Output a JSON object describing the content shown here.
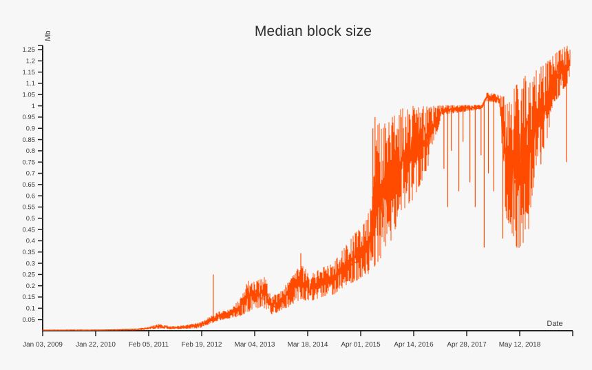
{
  "page": {
    "background_color": "#f7f7f7"
  },
  "chart": {
    "title": "Median block size",
    "y_axis_title": "Mb",
    "x_axis_title": "Date"
  },
  "chart_data": {
    "type": "line",
    "title": "Median block size",
    "xlabel": "Date",
    "ylabel": "Mb",
    "legend": "none",
    "grid": false,
    "line_color": "#ff4b00",
    "axis_color": "#222222",
    "tick_text_color": "#3a3a3a",
    "background_color": "#f7f7f7",
    "ylim": [
      0,
      1.3
    ],
    "y_tick_values": [
      0.05,
      0.1,
      0.15,
      0.2,
      0.25,
      0.3,
      0.35,
      0.4,
      0.45,
      0.5,
      0.55,
      0.6,
      0.65,
      0.7,
      0.75,
      0.8,
      0.85,
      0.9,
      0.95,
      1,
      1.05,
      1.1,
      1.15,
      1.2,
      1.25
    ],
    "y_tick_labels": [
      "0.05",
      "0.1",
      "0.15",
      "0.2",
      "0.25",
      "0.3",
      "0.35",
      "0.4",
      "0.45",
      "0.5",
      "0.55",
      "0.6",
      "0.65",
      "0.7",
      "0.75",
      "0.8",
      "0.85",
      "0.9",
      "0.95",
      "1",
      "1.05",
      "1.1",
      "1.15",
      "1.2",
      "1.25"
    ],
    "x_tick_labels": [
      "Jan 03, 2009",
      "Jan 22, 2010",
      "Feb 05, 2011",
      "Feb 19, 2012",
      "Mar 04, 2013",
      "Mar 18, 2014",
      "Apr 01, 2015",
      "Apr 14, 2016",
      "Apr 28, 2017",
      "May 12, 2018"
    ],
    "x_axis_has_terminal_unlabeled_tick": true,
    "series": [
      {
        "name": "median block size (Mb)",
        "format": "envelope rows are [x_fraction_of_axis, min_Mb, max_Mb]; daily series is highly volatile so it renders as a band between min and max",
        "envelope": [
          [
            0.0,
            0.001,
            0.004
          ],
          [
            0.114,
            0.001,
            0.005
          ],
          [
            0.179,
            0.002,
            0.01
          ],
          [
            0.2,
            0.005,
            0.018
          ],
          [
            0.221,
            0.01,
            0.03
          ],
          [
            0.242,
            0.006,
            0.02
          ],
          [
            0.27,
            0.008,
            0.025
          ],
          [
            0.3,
            0.012,
            0.04
          ],
          [
            0.316,
            0.03,
            0.065
          ],
          [
            0.332,
            0.045,
            0.085
          ],
          [
            0.355,
            0.055,
            0.095
          ],
          [
            0.374,
            0.065,
            0.15
          ],
          [
            0.39,
            0.085,
            0.24
          ],
          [
            0.403,
            0.1,
            0.22
          ],
          [
            0.419,
            0.1,
            0.24
          ],
          [
            0.432,
            0.07,
            0.15
          ],
          [
            0.449,
            0.09,
            0.18
          ],
          [
            0.468,
            0.11,
            0.23
          ],
          [
            0.487,
            0.14,
            0.3
          ],
          [
            0.504,
            0.13,
            0.25
          ],
          [
            0.527,
            0.15,
            0.28
          ],
          [
            0.549,
            0.16,
            0.3
          ],
          [
            0.571,
            0.2,
            0.38
          ],
          [
            0.591,
            0.22,
            0.44
          ],
          [
            0.603,
            0.24,
            0.46
          ],
          [
            0.621,
            0.26,
            0.56
          ],
          [
            0.631,
            0.3,
            0.93
          ],
          [
            0.649,
            0.35,
            0.92
          ],
          [
            0.67,
            0.48,
            0.98
          ],
          [
            0.688,
            0.55,
            1.0
          ],
          [
            0.704,
            0.6,
            1.0
          ],
          [
            0.727,
            0.73,
            1.0
          ],
          [
            0.753,
            0.96,
            1.002
          ],
          [
            0.829,
            0.985,
            1.005
          ],
          [
            0.838,
            1.02,
            1.06
          ],
          [
            0.862,
            1.01,
            1.05
          ],
          [
            0.873,
            0.5,
            1.05
          ],
          [
            0.896,
            0.36,
            1.1
          ],
          [
            0.917,
            0.42,
            1.15
          ],
          [
            0.932,
            0.75,
            1.16
          ],
          [
            0.949,
            0.82,
            1.19
          ],
          [
            0.966,
            1.02,
            1.23
          ],
          [
            0.982,
            1.06,
            1.26
          ],
          [
            0.994,
            1.12,
            1.27
          ],
          [
            1.0,
            1.15,
            1.26
          ]
        ],
        "spikes_up": [
          [
            0.322,
            0.25
          ],
          [
            0.487,
            0.345
          ],
          [
            0.623,
            0.9
          ],
          [
            0.627,
            0.95
          ]
        ],
        "spikes_down": [
          [
            0.757,
            0.72
          ],
          [
            0.764,
            0.55
          ],
          [
            0.771,
            0.8
          ],
          [
            0.785,
            0.62
          ],
          [
            0.793,
            0.84
          ],
          [
            0.806,
            0.66
          ],
          [
            0.816,
            0.55
          ],
          [
            0.827,
            0.78
          ],
          [
            0.833,
            0.37
          ],
          [
            0.841,
            0.7
          ],
          [
            0.851,
            0.62
          ],
          [
            0.868,
            0.41
          ],
          [
            0.94,
            0.74
          ],
          [
            0.988,
            0.75
          ]
        ]
      }
    ]
  }
}
